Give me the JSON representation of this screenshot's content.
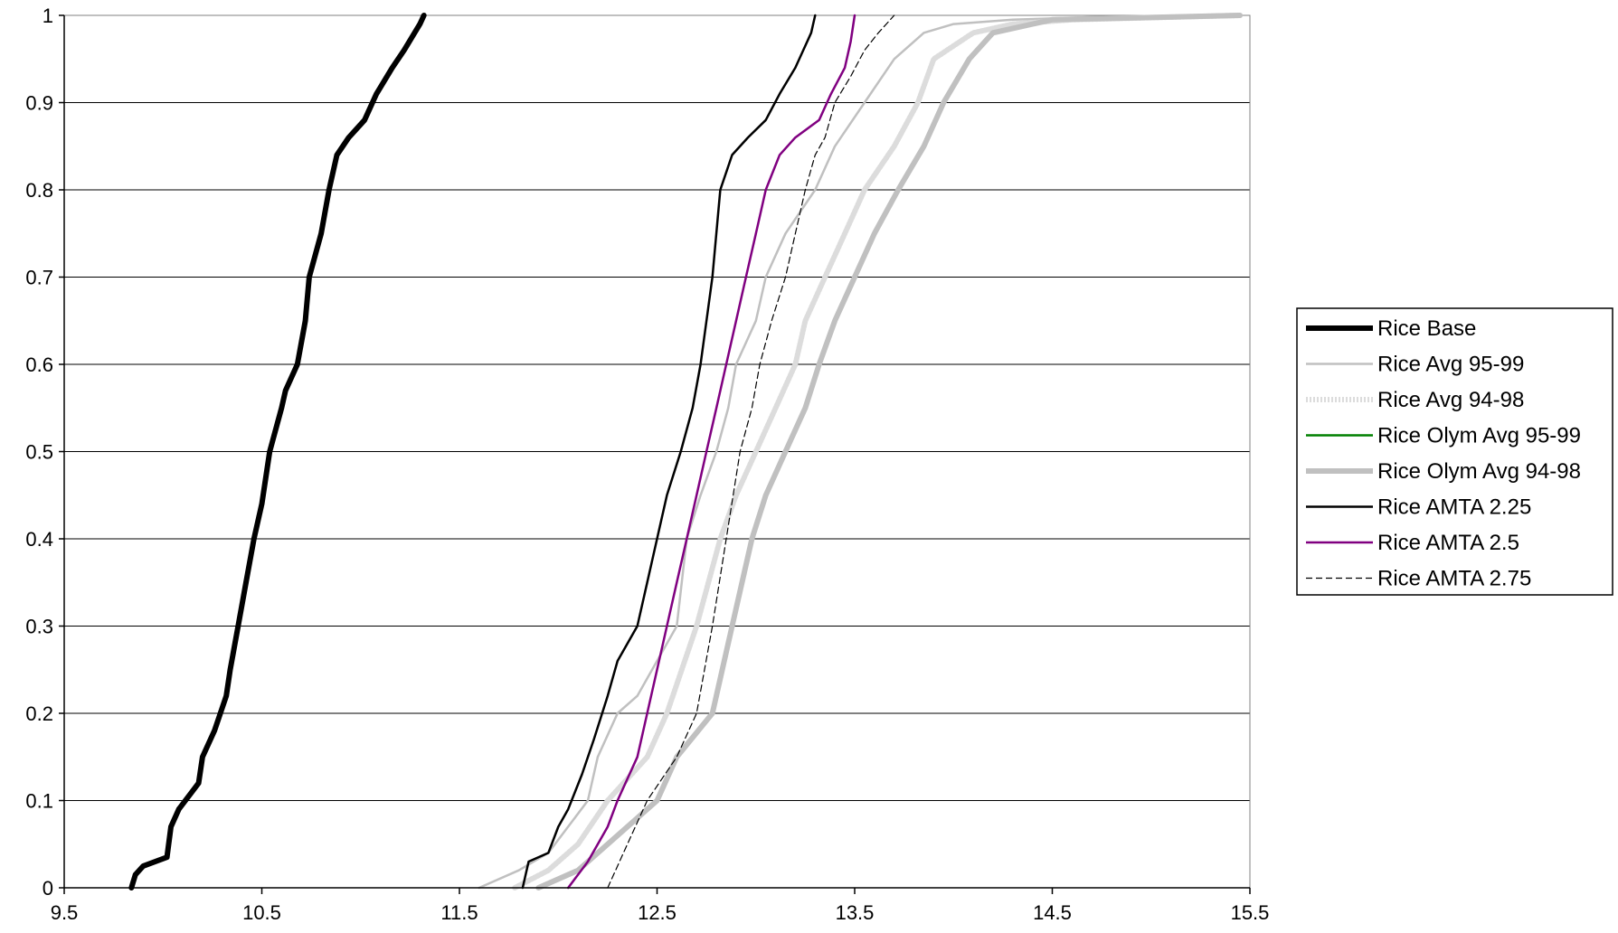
{
  "chart_data": {
    "type": "line",
    "title": "",
    "xlabel": "",
    "ylabel": "",
    "xlim": [
      9.5,
      15.5
    ],
    "ylim": [
      0,
      1
    ],
    "x_ticks": [
      "9.5",
      "10.5",
      "11.5",
      "12.5",
      "13.5",
      "14.5",
      "15.5"
    ],
    "y_ticks": [
      "0",
      "0.1",
      "0.2",
      "0.3",
      "0.4",
      "0.5",
      "0.6",
      "0.7",
      "0.8",
      "0.9",
      "1"
    ],
    "grid": "horizontal",
    "legend_position": "right",
    "series": [
      {
        "name": "Rice Base",
        "color": "#000000",
        "style": "solid-thick",
        "x": [
          9.84,
          9.86,
          9.9,
          10.02,
          10.04,
          10.08,
          10.18,
          10.2,
          10.26,
          10.32,
          10.34,
          10.38,
          10.42,
          10.46,
          10.5,
          10.54,
          10.6,
          10.62,
          10.68,
          10.72,
          10.74,
          10.8,
          10.84,
          10.88,
          10.94,
          11.02,
          11.08,
          11.16,
          11.22,
          11.3,
          11.32
        ],
        "y": [
          0,
          0.015,
          0.025,
          0.035,
          0.07,
          0.09,
          0.12,
          0.15,
          0.18,
          0.22,
          0.25,
          0.3,
          0.35,
          0.4,
          0.44,
          0.5,
          0.55,
          0.57,
          0.6,
          0.65,
          0.7,
          0.75,
          0.8,
          0.84,
          0.86,
          0.88,
          0.91,
          0.94,
          0.96,
          0.99,
          1
        ]
      },
      {
        "name": "Rice Avg 95-99",
        "color": "#c0c0c0",
        "style": "solid",
        "x": [
          11.6,
          11.8,
          11.95,
          12.15,
          12.2,
          12.3,
          12.4,
          12.6,
          12.65,
          12.72,
          12.8,
          12.86,
          12.9,
          13.0,
          13.05,
          13.15,
          13.3,
          13.4,
          13.55,
          13.7,
          13.85,
          14.0,
          14.3,
          14.7,
          15.45
        ],
        "y": [
          0,
          0.02,
          0.04,
          0.1,
          0.15,
          0.2,
          0.22,
          0.3,
          0.4,
          0.45,
          0.5,
          0.55,
          0.6,
          0.65,
          0.7,
          0.75,
          0.8,
          0.85,
          0.9,
          0.95,
          0.98,
          0.99,
          0.995,
          0.998,
          1
        ]
      },
      {
        "name": "Rice Avg 94-98",
        "color": "#dcdcdc",
        "style": "dotted-band",
        "x": [
          11.78,
          11.95,
          12.1,
          12.25,
          12.45,
          12.55,
          12.7,
          12.82,
          12.9,
          13.0,
          13.1,
          13.2,
          13.25,
          13.35,
          13.45,
          13.55,
          13.7,
          13.82,
          13.9,
          14.1,
          14.3,
          14.6,
          15.45
        ],
        "y": [
          0,
          0.02,
          0.05,
          0.1,
          0.15,
          0.2,
          0.3,
          0.4,
          0.45,
          0.5,
          0.55,
          0.6,
          0.65,
          0.7,
          0.75,
          0.8,
          0.85,
          0.9,
          0.95,
          0.98,
          0.99,
          0.995,
          1
        ]
      },
      {
        "name": "Rice Olym Avg 95-99",
        "color": "#008000",
        "style": "solid",
        "x": [],
        "y": []
      },
      {
        "name": "Rice Olym Avg 94-98",
        "color": "#c0c0c0",
        "style": "solid-thick",
        "x": [
          11.9,
          12.1,
          12.3,
          12.5,
          12.6,
          12.78,
          12.88,
          12.98,
          13.05,
          13.15,
          13.25,
          13.32,
          13.4,
          13.5,
          13.6,
          13.72,
          13.85,
          13.95,
          14.08,
          14.2,
          14.5,
          15.45
        ],
        "y": [
          0,
          0.02,
          0.06,
          0.1,
          0.15,
          0.2,
          0.3,
          0.4,
          0.45,
          0.5,
          0.55,
          0.6,
          0.65,
          0.7,
          0.75,
          0.8,
          0.85,
          0.9,
          0.95,
          0.98,
          0.995,
          1
        ]
      },
      {
        "name": "Rice AMTA 2.25",
        "color": "#000000",
        "style": "solid",
        "x": [
          11.82,
          11.85,
          11.95,
          12.0,
          12.05,
          12.12,
          12.18,
          12.25,
          12.3,
          12.4,
          12.45,
          12.5,
          12.55,
          12.62,
          12.68,
          12.72,
          12.78,
          12.82,
          12.88,
          12.96,
          13.05,
          13.12,
          13.2,
          13.28,
          13.3
        ],
        "y": [
          0,
          0.03,
          0.04,
          0.07,
          0.09,
          0.13,
          0.17,
          0.22,
          0.26,
          0.3,
          0.35,
          0.4,
          0.45,
          0.5,
          0.55,
          0.6,
          0.7,
          0.8,
          0.84,
          0.86,
          0.88,
          0.91,
          0.94,
          0.98,
          1
        ]
      },
      {
        "name": "Rice AMTA 2.5",
        "color": "#800080",
        "style": "solid",
        "x": [
          12.05,
          12.15,
          12.25,
          12.3,
          12.4,
          12.45,
          12.5,
          12.55,
          12.6,
          12.65,
          12.7,
          12.75,
          12.8,
          12.85,
          12.9,
          12.95,
          13.0,
          13.05,
          13.12,
          13.2,
          13.32,
          13.38,
          13.45,
          13.48,
          13.5
        ],
        "y": [
          0,
          0.03,
          0.07,
          0.1,
          0.15,
          0.2,
          0.25,
          0.3,
          0.35,
          0.4,
          0.45,
          0.5,
          0.55,
          0.6,
          0.65,
          0.7,
          0.75,
          0.8,
          0.84,
          0.86,
          0.88,
          0.91,
          0.94,
          0.97,
          1
        ]
      },
      {
        "name": "Rice AMTA 2.75",
        "color": "#000000",
        "style": "dashed-thin",
        "x": [
          12.25,
          12.35,
          12.45,
          12.6,
          12.7,
          12.78,
          12.85,
          12.92,
          12.98,
          13.02,
          13.08,
          13.15,
          13.2,
          13.25,
          13.3,
          13.35,
          13.4,
          13.48,
          13.55,
          13.62,
          13.7
        ],
        "y": [
          0,
          0.05,
          0.1,
          0.15,
          0.2,
          0.3,
          0.4,
          0.5,
          0.55,
          0.6,
          0.65,
          0.7,
          0.75,
          0.8,
          0.84,
          0.86,
          0.9,
          0.93,
          0.96,
          0.98,
          1
        ]
      }
    ]
  }
}
